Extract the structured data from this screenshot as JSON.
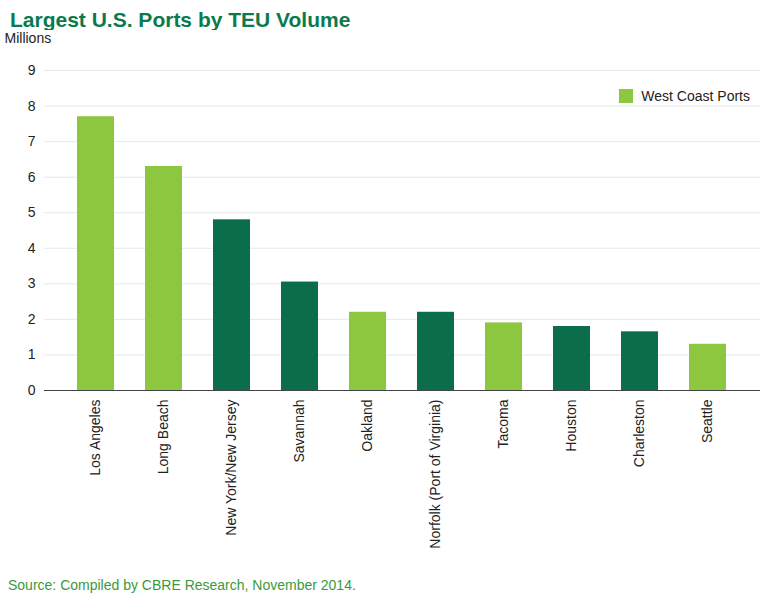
{
  "chart_data": {
    "type": "bar",
    "title": "Largest U.S. Ports by TEU Volume",
    "y_label": "Millions",
    "source": "Source: Compiled by CBRE Research, November 2014.",
    "categories": [
      "Los Angeles",
      "Long Beach",
      "New York/New Jersey",
      "Savannah",
      "Oakland",
      "Norfolk (Port of Virginia)",
      "Tacoma",
      "Houston",
      "Charleston",
      "Seattle"
    ],
    "series": [
      {
        "name": "West Coast Ports",
        "color": "#8dc63f",
        "values": [
          7.7,
          6.3,
          null,
          null,
          2.2,
          null,
          1.9,
          null,
          null,
          1.3
        ]
      },
      {
        "color": "#0a6e4a",
        "values": [
          null,
          null,
          4.8,
          3.05,
          null,
          2.2,
          null,
          1.8,
          1.65,
          null
        ]
      }
    ],
    "ylim": [
      0,
      9
    ],
    "yticks": [
      0,
      1,
      2,
      3,
      4,
      5,
      6,
      7,
      8,
      9
    ],
    "grid": true,
    "legend": "top-right"
  }
}
